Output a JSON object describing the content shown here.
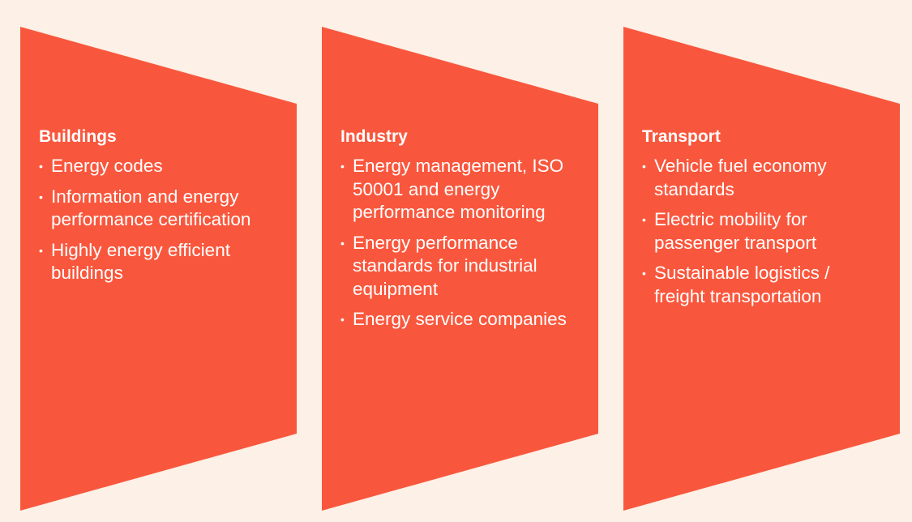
{
  "panels": [
    {
      "title": "Buildings",
      "items": [
        "Energy codes",
        "Information and energy performance certification",
        "Highly energy efficient buildings"
      ]
    },
    {
      "title": "Industry",
      "items": [
        "Energy management, ISO 50001 and energy performance monitoring",
        "Energy performance standards for industrial equipment",
        "Energy service companies"
      ]
    },
    {
      "title": "Transport",
      "items": [
        "Vehicle fuel economy standards",
        "Electric mobility for passenger transport",
        "Sustainable logistics / freight transportation"
      ]
    }
  ]
}
